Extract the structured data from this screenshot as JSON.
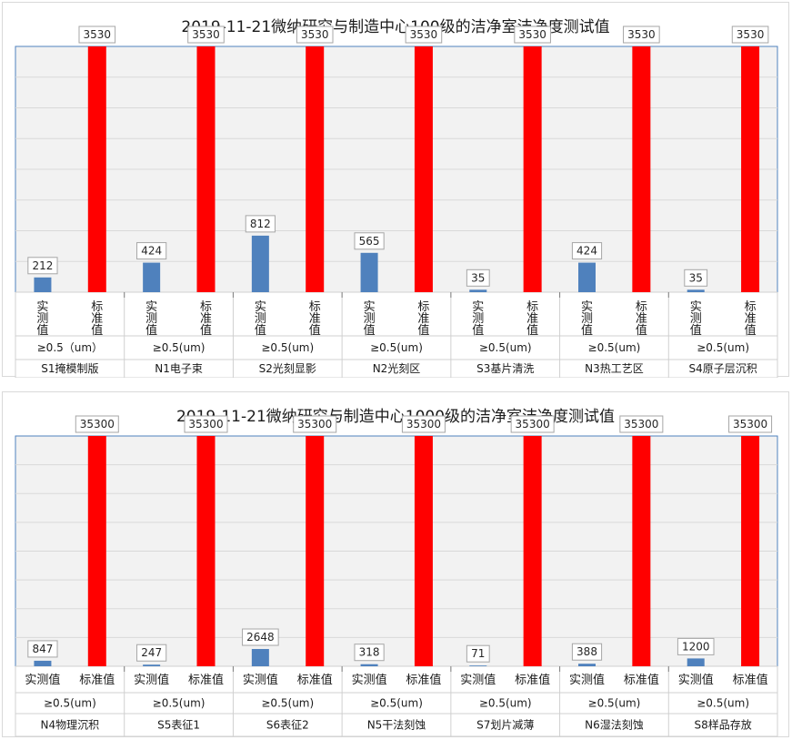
{
  "chart_data": [
    {
      "type": "bar",
      "title": "2019-11-21微纳研究与制造中心100级的洁净室洁净度测试值",
      "ylim": [
        0,
        3530
      ],
      "grid": true,
      "categories": [
        "S1掩模制版",
        "N1电子束",
        "S2光刻显影",
        "N2光刻区",
        "S3基片清洗",
        "N3热工艺区",
        "S4原子层沉积"
      ],
      "particle_size": [
        "≥0.5（um）",
        "≥0.5(um)",
        "≥0.5(um)",
        "≥0.5(um)",
        "≥0.5(um)",
        "≥0.5(um)",
        "≥0.5(um)"
      ],
      "bar_labels": [
        "实测值",
        "标准值"
      ],
      "series": [
        {
          "name": "实测值",
          "color": "#4f81bd",
          "values": [
            212,
            424,
            812,
            565,
            35,
            424,
            35
          ]
        },
        {
          "name": "标准值",
          "color": "#ff0000",
          "values": [
            3530,
            3530,
            3530,
            3530,
            3530,
            3530,
            3530
          ]
        }
      ]
    },
    {
      "type": "bar",
      "title": "2019-11-21微纳研究与制造中心1000级的洁净室洁净度测试值",
      "ylim": [
        0,
        35300
      ],
      "grid": true,
      "categories": [
        "N4物理沉积",
        "S5表征1",
        "S6表征2",
        "N5干法刻蚀",
        "S7划片减薄",
        "N6湿法刻蚀",
        "S8样品存放"
      ],
      "particle_size": [
        "≥0.5(um)",
        "≥0.5(um)",
        "≥0.5(um)",
        "≥0.5(um)",
        "≥0.5(um)",
        "≥0.5(um)",
        "≥0.5(um)"
      ],
      "bar_labels": [
        "实测值",
        "标准值"
      ],
      "series": [
        {
          "name": "实测值",
          "color": "#4f81bd",
          "values": [
            847,
            247,
            2648,
            318,
            71,
            388,
            1200
          ]
        },
        {
          "name": "标准值",
          "color": "#ff0000",
          "values": [
            35300,
            35300,
            35300,
            35300,
            35300,
            35300,
            35300
          ]
        }
      ]
    }
  ]
}
